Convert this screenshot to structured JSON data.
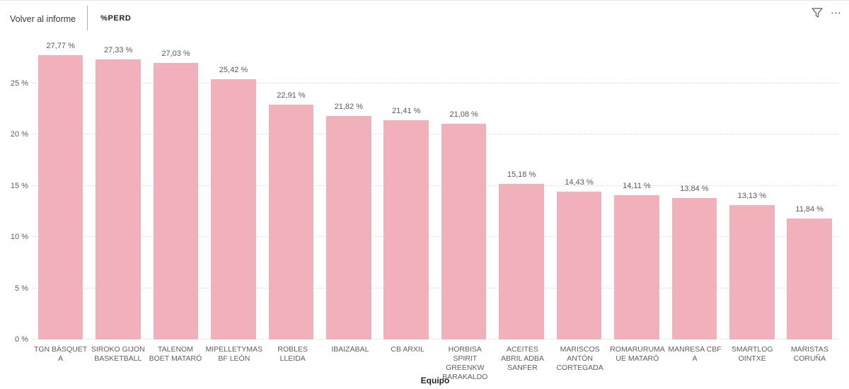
{
  "header": {
    "back_label": "Volver al informe",
    "title": "%PERD"
  },
  "colors": {
    "bar": "#f1b1bb",
    "gridline": "#dcdcdc",
    "axis_text": "#605e5c",
    "title_text": "#252423"
  },
  "chart_data": {
    "type": "bar",
    "title": "%PERD",
    "xlabel": "Equipo",
    "ylabel": "",
    "ylim": [
      0,
      29
    ],
    "yticks": [
      0,
      5,
      10,
      15,
      20,
      25
    ],
    "ytick_labels": [
      "0 %",
      "5 %",
      "10 %",
      "15 %",
      "20 %",
      "25 %"
    ],
    "grid": true,
    "legend": false,
    "categories": [
      "TGN BÀSQUET A",
      "SIROKO GIJON BASKETBALL",
      "TALENOM BOET MATARÓ",
      "MIPELLETYMAS BF LEÓN",
      "ROBLES LLEIDA",
      "IBAIZABAL",
      "CB ARXIL",
      "HORBISA SPIRIT GREENKW BARAKALDO",
      "ACEITES ABRIL ADBA SANFER",
      "MARISCOS ANTÓN CORTEGADA",
      "ROMARURUMA UE MATARÓ",
      "MANRESA CBF A",
      "SMARTLOG OINTXE",
      "MARISTAS CORUÑA"
    ],
    "values": [
      27.77,
      27.33,
      27.03,
      25.42,
      22.91,
      21.82,
      21.41,
      21.08,
      15.18,
      14.43,
      14.11,
      13.84,
      13.13,
      11.84
    ],
    "value_labels": [
      "27,77 %",
      "27,33 %",
      "27,03 %",
      "25,42 %",
      "22,91 %",
      "21,82 %",
      "21,41 %",
      "21,08 %",
      "15,18 %",
      "14,43 %",
      "14,11 %",
      "13,84 %",
      "13,13 %",
      "11,84 %"
    ]
  }
}
